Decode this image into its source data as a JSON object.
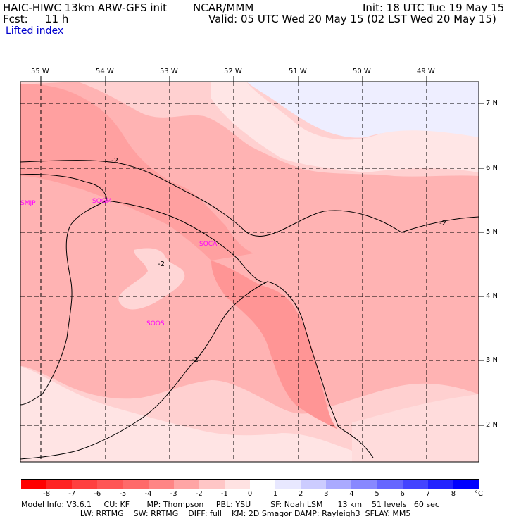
{
  "header": {
    "model_line": "HAIC-HIWC 13km ARW-GFS init",
    "org": "NCAR/MMM",
    "init": "Init: 18 UTC Tue 19 May 15",
    "fcst_label": "Fcst:",
    "fcst_value": "11 h",
    "valid": "Valid: 05 UTC Wed 20 May 15 (02 LST Wed 20 May 15)",
    "field": "Lifted index"
  },
  "axes": {
    "lon_labels": [
      "55 W",
      "54 W",
      "53 W",
      "52 W",
      "51 W",
      "50 W",
      "49 W"
    ],
    "lat_labels": [
      "7 N",
      "6 N",
      "5 N",
      "4 N",
      "3 N",
      "2 N"
    ]
  },
  "stations": [
    "SMJP",
    "SOGM",
    "SOCA",
    "SOOS"
  ],
  "contour_labels": [
    "-2",
    "-2",
    "-2",
    "-2"
  ],
  "colorbar": {
    "ticks": [
      "-8",
      "-7",
      "-6",
      "-5",
      "-4",
      "-3",
      "-2",
      "-1",
      "0",
      "1",
      "2",
      "3",
      "4",
      "5",
      "6",
      "7",
      "8"
    ],
    "unit": "°C",
    "colors": [
      "#ff0000",
      "#ff2222",
      "#ff4040",
      "#ff5555",
      "#ff6a6a",
      "#ff8585",
      "#ffa5a5",
      "#ffc6c6",
      "#ffe2e2",
      "#ffffff",
      "#e8e8ff",
      "#ccccff",
      "#aaaaff",
      "#8888ff",
      "#6666ff",
      "#4444ff",
      "#2222ff",
      "#0000ff"
    ]
  },
  "footer": {
    "line1": "Model Info: V3.6.1     CU: KF       MP: Thompson     PBL: YSU        SF: Noah LSM      13 km    51 levels   60 sec",
    "line2": "                        LW: RRTMG    SW: RRTMG    DIFF: full    KM: 2D Smagor DAMP: Rayleigh3  SFLAY: MM5"
  }
}
